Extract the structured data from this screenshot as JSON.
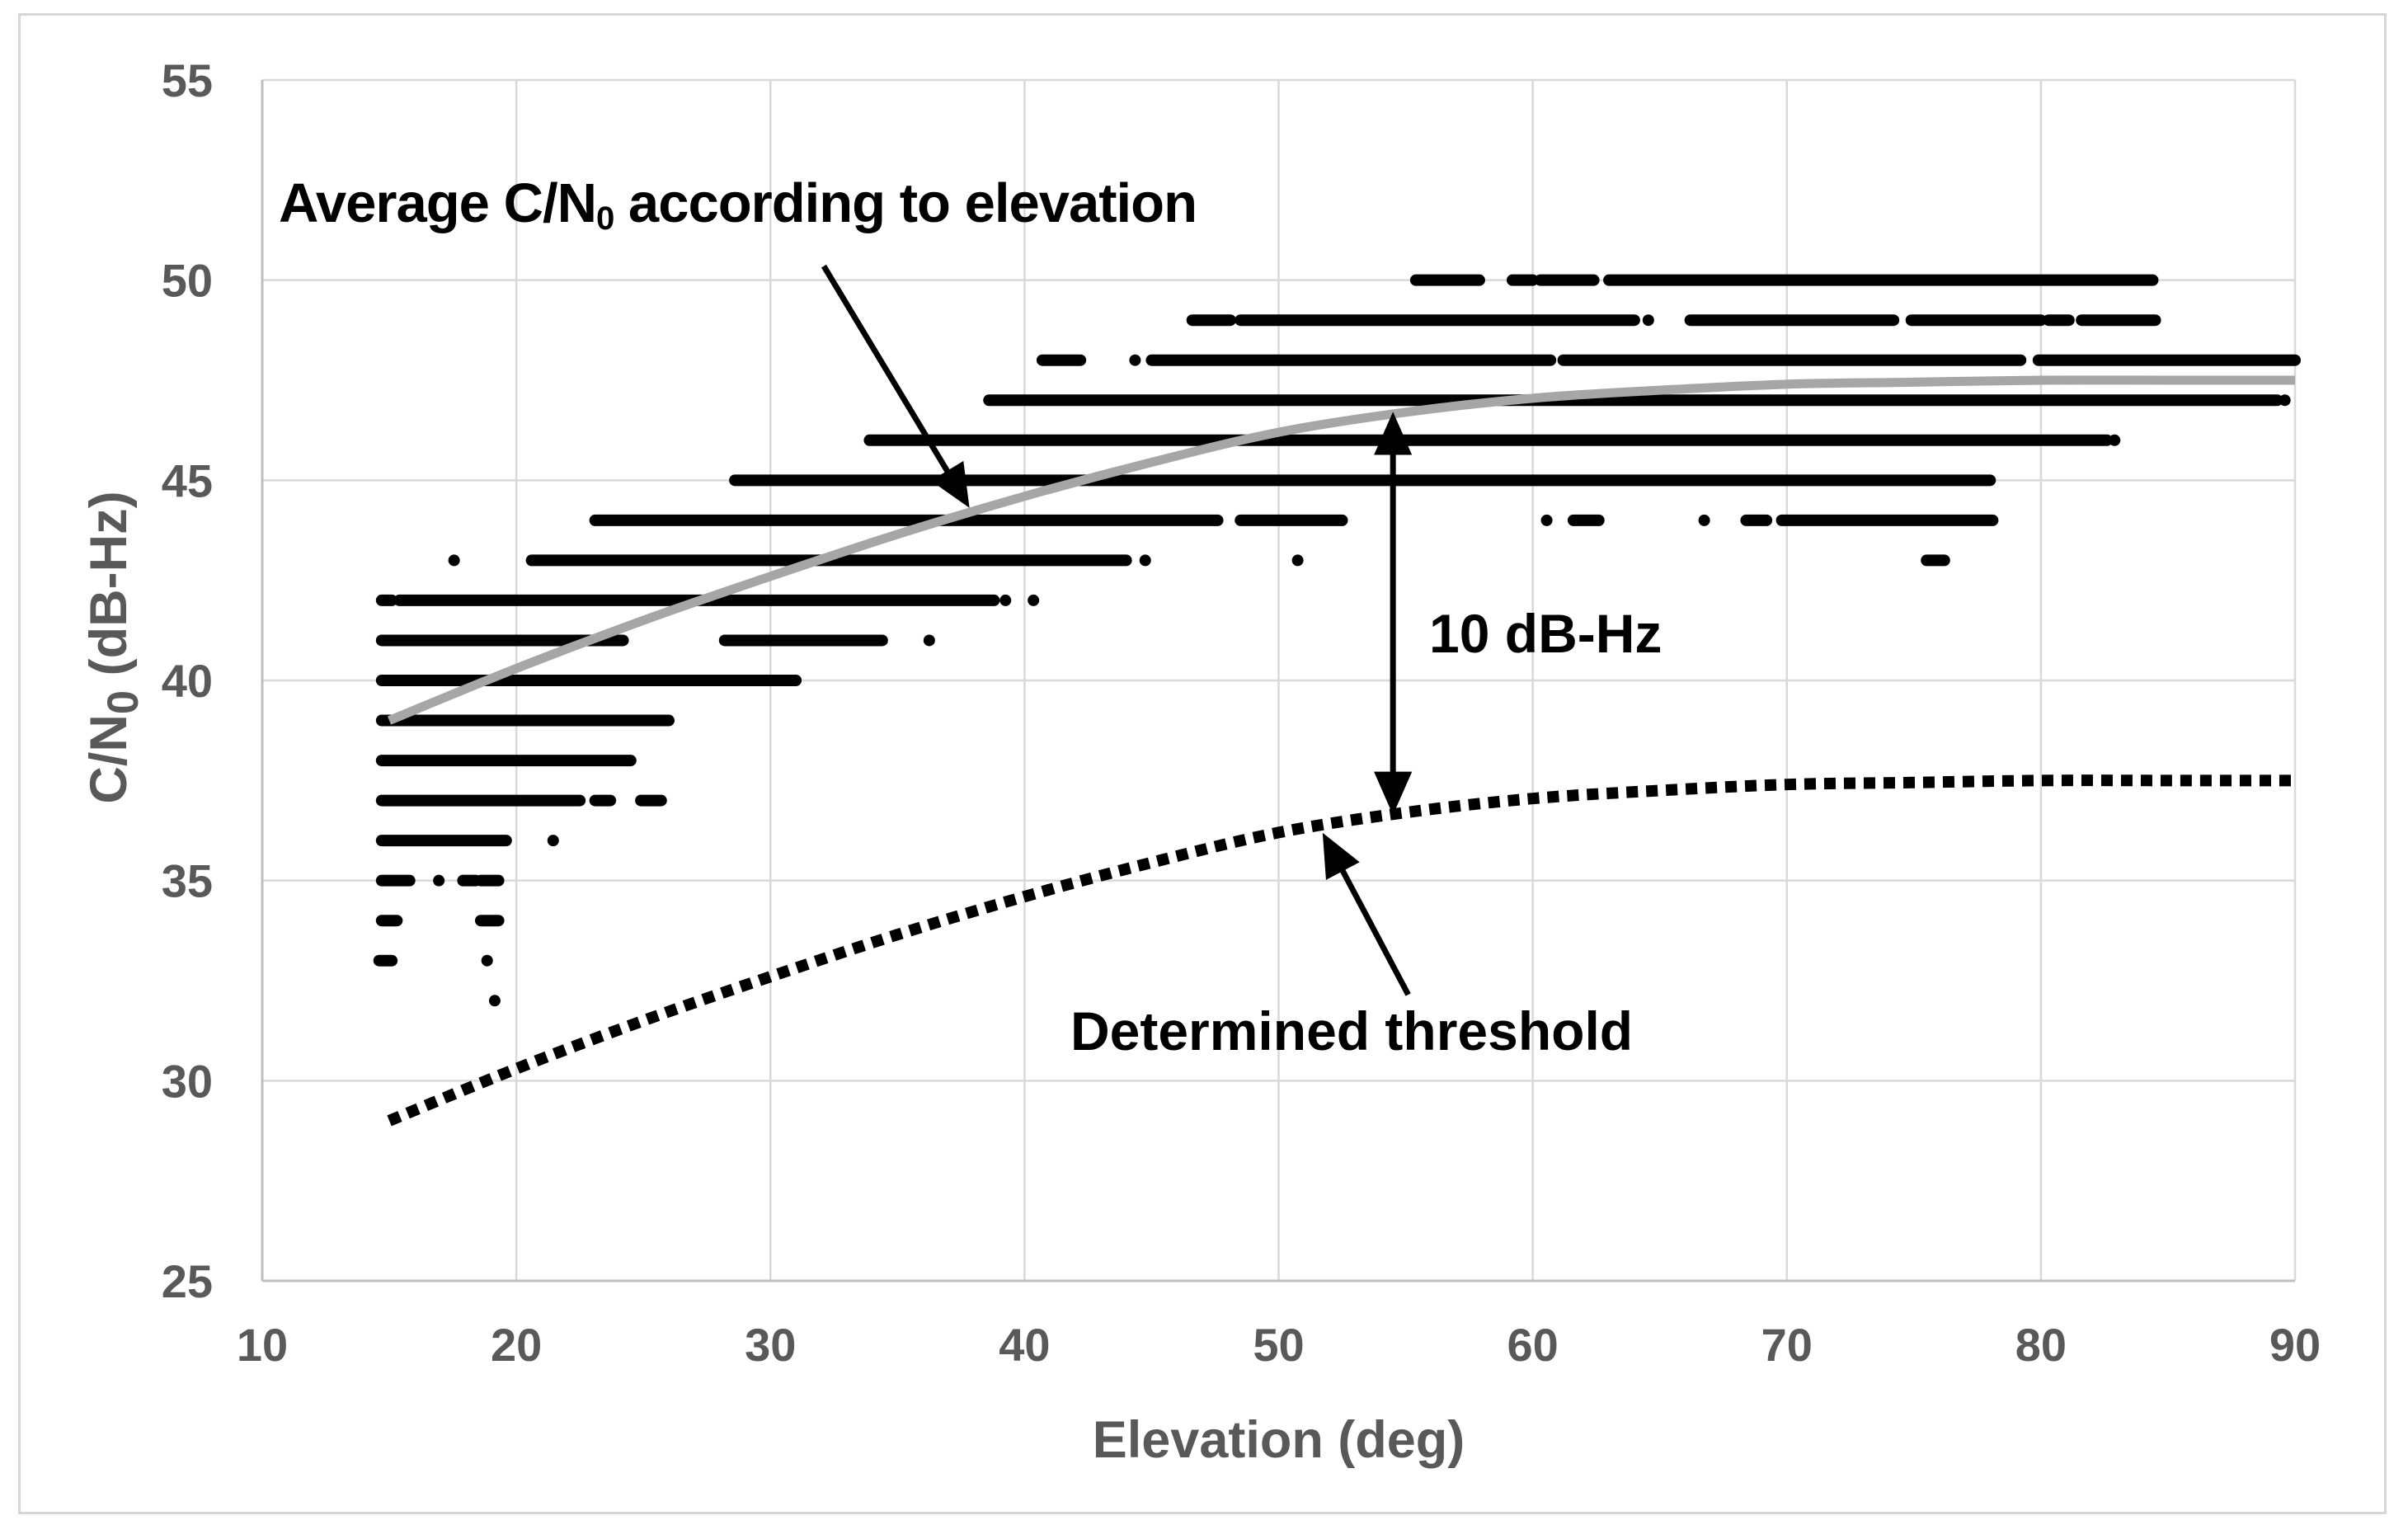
{
  "labels": {
    "avg": {
      "prefix": "Average C/N",
      "sub": "0",
      "suffix": " according to elevation"
    },
    "offset": {
      "text": "10 dB-Hz"
    },
    "threshold": {
      "text": "Determined threshold"
    },
    "x_axis": {
      "title": "Elevation (deg)"
    },
    "y_axis": {
      "prefix": "C/N",
      "sub": "0",
      "suffix": " (dB-Hz)"
    }
  },
  "colors": {
    "scatter": "#000000",
    "average_line": "#a6a6a6",
    "threshold_line": "#000000",
    "grid": "#d9d9d9",
    "axis": "#bfbfbf",
    "tick_text": "#595959",
    "annotation_text": "#000000"
  },
  "chart_data": {
    "type": "scatter",
    "title": "",
    "xlabel": "Elevation (deg)",
    "ylabel": "C/N0 (dB-Hz)",
    "xlim": [
      10,
      90
    ],
    "ylim": [
      25,
      55
    ],
    "x_ticks": [
      10,
      20,
      30,
      40,
      50,
      60,
      70,
      80,
      90
    ],
    "y_ticks": [
      25,
      30,
      35,
      40,
      45,
      50,
      55
    ],
    "grid": true,
    "legend": "none",
    "scatter_rows": [
      {
        "db": 50,
        "segments": [
          [
            55.4,
            57.9
          ],
          [
            59.2,
            60.0
          ],
          [
            60.3,
            62.4
          ],
          [
            63.0,
            84.4
          ]
        ]
      },
      {
        "db": 49,
        "segments": [
          [
            46.6,
            48.1
          ],
          [
            48.5,
            64.0
          ],
          [
            64.4,
            64.7
          ],
          [
            66.2,
            74.2
          ],
          [
            74.9,
            80.0
          ],
          [
            80.3,
            81.1
          ],
          [
            81.6,
            84.5
          ]
        ]
      },
      {
        "db": 48,
        "segments": [
          [
            40.7,
            42.2
          ],
          [
            44.2,
            44.5
          ],
          [
            45.0,
            60.7
          ],
          [
            61.2,
            79.2
          ],
          [
            79.9,
            90.0
          ]
        ]
      },
      {
        "db": 47,
        "segments": [
          [
            38.6,
            89.3
          ],
          [
            89.5,
            89.7
          ]
        ]
      },
      {
        "db": 46,
        "segments": [
          [
            33.9,
            82.6
          ],
          [
            82.8,
            83.0
          ]
        ]
      },
      {
        "db": 45,
        "segments": [
          [
            28.6,
            78.0
          ]
        ]
      },
      {
        "db": 44,
        "segments": [
          [
            23.1,
            47.6
          ],
          [
            48.5,
            52.5
          ],
          [
            60.4,
            60.7
          ],
          [
            61.6,
            62.6
          ],
          [
            66.6,
            66.9
          ],
          [
            68.4,
            69.2
          ],
          [
            69.8,
            78.1
          ]
        ]
      },
      {
        "db": 43,
        "segments": [
          [
            17.4,
            17.7
          ],
          [
            20.6,
            44.0
          ],
          [
            44.6,
            44.9
          ],
          [
            50.6,
            50.9
          ],
          [
            75.5,
            76.2
          ]
        ]
      },
      {
        "db": 42,
        "segments": [
          [
            14.7,
            15.1
          ],
          [
            15.4,
            38.8
          ],
          [
            39.1,
            39.4
          ],
          [
            40.2,
            40.5
          ]
        ]
      },
      {
        "db": 41,
        "segments": [
          [
            14.7,
            24.2
          ],
          [
            28.2,
            34.4
          ],
          [
            36.1,
            36.4
          ]
        ]
      },
      {
        "db": 40,
        "segments": [
          [
            14.7,
            31.0
          ]
        ]
      },
      {
        "db": 39,
        "segments": [
          [
            14.7,
            26.0
          ]
        ]
      },
      {
        "db": 38,
        "segments": [
          [
            14.7,
            24.5
          ]
        ]
      },
      {
        "db": 37,
        "segments": [
          [
            14.7,
            22.5
          ],
          [
            23.1,
            23.7
          ],
          [
            24.9,
            25.7
          ]
        ]
      },
      {
        "db": 36,
        "segments": [
          [
            14.7,
            19.6
          ],
          [
            21.3,
            21.6
          ]
        ]
      },
      {
        "db": 35,
        "segments": [
          [
            14.7,
            15.8
          ],
          [
            16.8,
            17.1
          ],
          [
            17.9,
            18.4
          ],
          [
            18.6,
            19.3
          ]
        ]
      },
      {
        "db": 34,
        "segments": [
          [
            14.7,
            15.3
          ],
          [
            18.6,
            19.3
          ]
        ]
      },
      {
        "db": 33,
        "segments": [
          [
            14.6,
            15.1
          ],
          [
            18.7,
            19.0
          ]
        ]
      },
      {
        "db": 32,
        "segments": [
          [
            19.0,
            19.3
          ]
        ]
      }
    ],
    "series": [
      {
        "name": "Average C/N0 according to elevation",
        "style": "solid",
        "color": "#a6a6a6",
        "width": 11,
        "points": [
          [
            15,
            39.0
          ],
          [
            20,
            40.3
          ],
          [
            25,
            41.5
          ],
          [
            30,
            42.6
          ],
          [
            35,
            43.65
          ],
          [
            40,
            44.6
          ],
          [
            45,
            45.45
          ],
          [
            50,
            46.2
          ],
          [
            55,
            46.7
          ],
          [
            60,
            47.05
          ],
          [
            65,
            47.25
          ],
          [
            70,
            47.4
          ],
          [
            75,
            47.45
          ],
          [
            80,
            47.5
          ],
          [
            85,
            47.5
          ],
          [
            90,
            47.5
          ]
        ]
      },
      {
        "name": "Determined threshold",
        "style": "dotted",
        "color": "#000000",
        "width": 14,
        "points": [
          [
            15,
            29.0
          ],
          [
            20,
            30.3
          ],
          [
            25,
            31.5
          ],
          [
            30,
            32.6
          ],
          [
            35,
            33.65
          ],
          [
            40,
            34.6
          ],
          [
            45,
            35.45
          ],
          [
            50,
            36.2
          ],
          [
            55,
            36.7
          ],
          [
            60,
            37.05
          ],
          [
            65,
            37.25
          ],
          [
            70,
            37.4
          ],
          [
            75,
            37.45
          ],
          [
            80,
            37.5
          ],
          [
            85,
            37.5
          ],
          [
            90,
            37.5
          ]
        ]
      }
    ],
    "annotations": [
      {
        "id": "avg-arrow",
        "kind": "arrow",
        "from": [
          32.1,
          50.35
        ],
        "to": [
          37.7,
          44.45
        ],
        "heads": "end"
      },
      {
        "id": "offset-arrow",
        "kind": "double-arrow",
        "x": 54.5,
        "from_db": 46.55,
        "to_db": 36.8,
        "heads": "both",
        "value": "10 dB-Hz"
      },
      {
        "id": "threshold-arrow",
        "kind": "arrow",
        "from": [
          55.1,
          32.15
        ],
        "to": [
          51.85,
          36.05
        ],
        "heads": "end"
      }
    ]
  }
}
